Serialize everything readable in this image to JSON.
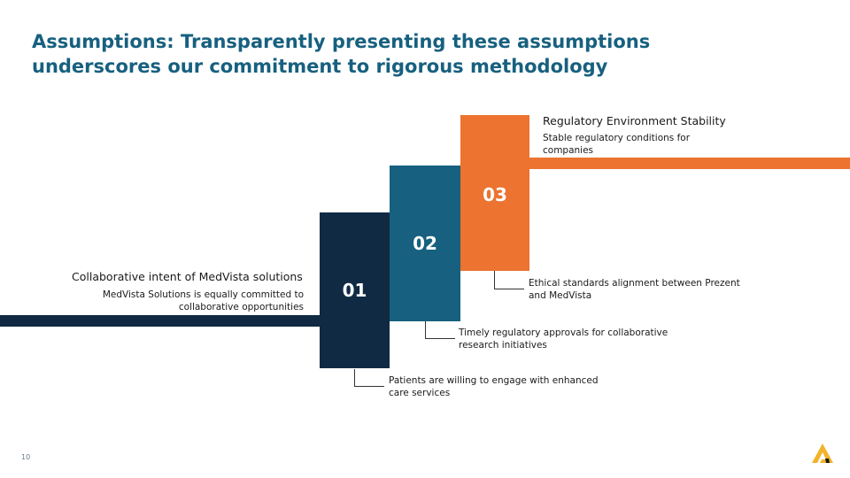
{
  "slide": {
    "title": "Assumptions: Transparently presenting these assumptions underscores our commitment to rigorous methodology",
    "page_number": "10"
  },
  "colors": {
    "title": "#17607f",
    "step1": "#102a43",
    "step2": "#17607f",
    "step3": "#ec7330"
  },
  "left_block": {
    "heading": "Collaborative intent of MedVista solutions",
    "description": "MedVista Solutions is equally committed to collaborative opportunities"
  },
  "right_block": {
    "heading": "Regulatory Environment Stability",
    "description": "Stable regulatory conditions for companies"
  },
  "steps": [
    {
      "number": "01",
      "callout": "Patients are willing to engage with enhanced care services"
    },
    {
      "number": "02",
      "callout": "Timely regulatory approvals for collaborative research initiatives"
    },
    {
      "number": "03",
      "callout": "Ethical standards alignment between Prezent and MedVista"
    }
  ],
  "logo": {
    "icon": "brand-logo-icon"
  }
}
